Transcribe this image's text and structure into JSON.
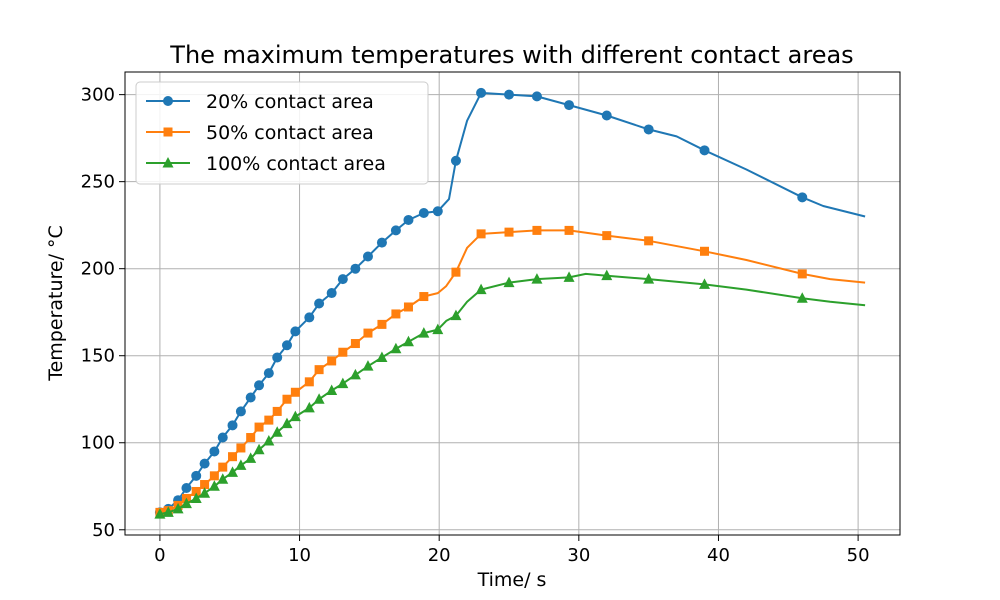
{
  "chart_data": {
    "type": "line",
    "title": "The maximum temperatures with different contact areas",
    "xlabel": "Time/ s",
    "ylabel": "Temperature/ °C",
    "xlim": [
      -2.5,
      53
    ],
    "ylim": [
      47,
      313
    ],
    "xticks": [
      0,
      10,
      20,
      30,
      40,
      50
    ],
    "yticks": [
      50,
      100,
      150,
      200,
      250,
      300
    ],
    "grid": true,
    "legend_position": "top-left",
    "series": [
      {
        "name": "20% contact area",
        "color": "#1f77b4",
        "marker": "circle",
        "x": [
          0,
          0.6,
          1.3,
          1.9,
          2.6,
          3.2,
          3.9,
          4.5,
          5.2,
          5.8,
          6.5,
          7.1,
          7.8,
          8.4,
          9.1,
          9.7,
          10.7,
          11.4,
          12.3,
          13.1,
          14.0,
          14.9,
          15.9,
          16.9,
          17.8,
          18.9,
          19.9,
          20.7,
          21.2,
          22.0,
          23.0,
          25.0,
          27.0,
          29.3,
          32.0,
          35.0,
          37.0,
          39.0,
          42.0,
          46.0,
          47.5,
          50.5
        ],
        "y": [
          60,
          62,
          67,
          74,
          81,
          88,
          95,
          103,
          110,
          118,
          126,
          133,
          140,
          149,
          156,
          164,
          172,
          180,
          186,
          194,
          200,
          207,
          215,
          222,
          228,
          232,
          233,
          240,
          262,
          285,
          301,
          300,
          299,
          294,
          288,
          280,
          276,
          268,
          257,
          241,
          236,
          230
        ],
        "markers": [
          0,
          1,
          2,
          3,
          4,
          5,
          6,
          7,
          8,
          9,
          10,
          11,
          12,
          13,
          14,
          15,
          16,
          17,
          18,
          19,
          20,
          21,
          22,
          23,
          24,
          25,
          26,
          28,
          30,
          31,
          32,
          33,
          34,
          35,
          37,
          39
        ]
      },
      {
        "name": "50% contact area",
        "color": "#ff7f0e",
        "marker": "square",
        "x": [
          0,
          0.6,
          1.3,
          1.9,
          2.6,
          3.2,
          3.9,
          4.5,
          5.2,
          5.8,
          6.5,
          7.1,
          7.8,
          8.4,
          9.1,
          9.7,
          10.7,
          11.4,
          12.3,
          13.1,
          14.0,
          14.9,
          15.9,
          16.9,
          17.8,
          18.9,
          19.9,
          20.5,
          21.2,
          22.0,
          23.0,
          25.0,
          27.0,
          29.3,
          32.0,
          35.0,
          39.0,
          42.0,
          46.0,
          48.0,
          50.5
        ],
        "y": [
          60,
          61,
          64,
          68,
          72,
          76,
          81,
          86,
          92,
          97,
          103,
          109,
          113,
          118,
          125,
          129,
          135,
          142,
          147,
          152,
          157,
          163,
          168,
          174,
          178,
          184,
          186,
          190,
          198,
          212,
          220,
          221,
          222,
          222,
          219,
          216,
          210,
          205,
          197,
          194,
          192
        ],
        "markers": [
          0,
          1,
          2,
          3,
          4,
          5,
          6,
          7,
          8,
          9,
          10,
          11,
          12,
          13,
          14,
          15,
          16,
          17,
          18,
          19,
          20,
          21,
          22,
          23,
          24,
          25,
          28,
          30,
          31,
          32,
          33,
          34,
          35,
          36,
          38
        ]
      },
      {
        "name": "100% contact area",
        "color": "#2ca02c",
        "marker": "triangle",
        "x": [
          0,
          0.6,
          1.3,
          1.9,
          2.6,
          3.2,
          3.9,
          4.5,
          5.2,
          5.8,
          6.5,
          7.1,
          7.8,
          8.4,
          9.1,
          9.7,
          10.7,
          11.4,
          12.3,
          13.1,
          14.0,
          14.9,
          15.9,
          16.9,
          17.8,
          18.9,
          19.9,
          20.5,
          21.2,
          22.0,
          23.0,
          25.0,
          27.0,
          29.3,
          30.5,
          32.0,
          35.0,
          39.0,
          42.0,
          46.0,
          48.0,
          50.5
        ],
        "y": [
          59,
          60,
          62,
          65,
          68,
          71,
          75,
          79,
          83,
          87,
          91,
          96,
          101,
          106,
          111,
          115,
          120,
          125,
          130,
          134,
          139,
          144,
          149,
          154,
          158,
          163,
          165,
          170,
          173,
          181,
          188,
          192,
          194,
          195,
          197,
          196,
          194,
          191,
          188,
          183,
          181,
          179
        ],
        "markers": [
          0,
          1,
          2,
          3,
          4,
          5,
          6,
          7,
          8,
          9,
          10,
          11,
          12,
          13,
          14,
          15,
          16,
          17,
          18,
          19,
          20,
          21,
          22,
          23,
          24,
          25,
          26,
          28,
          30,
          31,
          32,
          33,
          35,
          36,
          37,
          39
        ]
      }
    ]
  }
}
